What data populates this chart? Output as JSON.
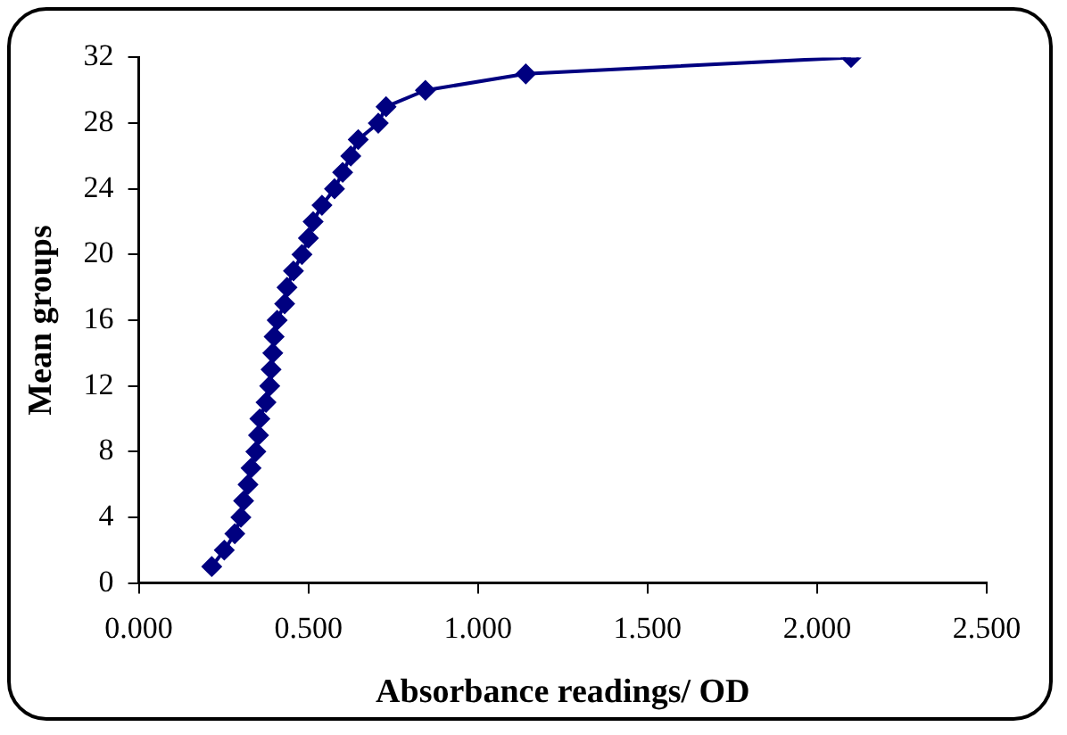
{
  "chart_data": {
    "type": "line",
    "xlabel": "Absorbance readings/ OD",
    "ylabel": "Mean groups",
    "x": [
      0.215,
      0.252,
      0.283,
      0.301,
      0.309,
      0.322,
      0.331,
      0.345,
      0.353,
      0.357,
      0.375,
      0.386,
      0.39,
      0.395,
      0.399,
      0.408,
      0.43,
      0.437,
      0.456,
      0.481,
      0.5,
      0.514,
      0.54,
      0.577,
      0.601,
      0.625,
      0.647,
      0.706,
      0.729,
      0.845,
      1.141,
      2.1
    ],
    "series": [
      {
        "color": "#000080",
        "values": [
          1,
          2,
          3,
          4,
          5,
          6,
          7,
          8,
          9,
          10,
          11,
          12,
          13,
          14,
          15,
          16,
          17,
          18,
          19,
          20,
          21,
          22,
          23,
          24,
          25,
          26,
          27,
          28,
          29,
          30,
          31,
          32
        ]
      }
    ],
    "xlim": [
      0,
      2.5
    ],
    "xticks": [
      {
        "value": 0,
        "label": "0.000"
      },
      {
        "value": 0.5,
        "label": "0.500"
      },
      {
        "value": 1,
        "label": "1.000"
      },
      {
        "value": 1.5,
        "label": "1.500"
      },
      {
        "value": 2,
        "label": "2.000"
      },
      {
        "value": 2.5,
        "label": "2.500"
      }
    ],
    "ylim": [
      0,
      32
    ],
    "yticks": [
      0,
      4,
      8,
      12,
      16,
      20,
      24,
      28,
      32
    ],
    "grid": false,
    "legend": false,
    "marker": "diamond",
    "line_style": "solid"
  }
}
